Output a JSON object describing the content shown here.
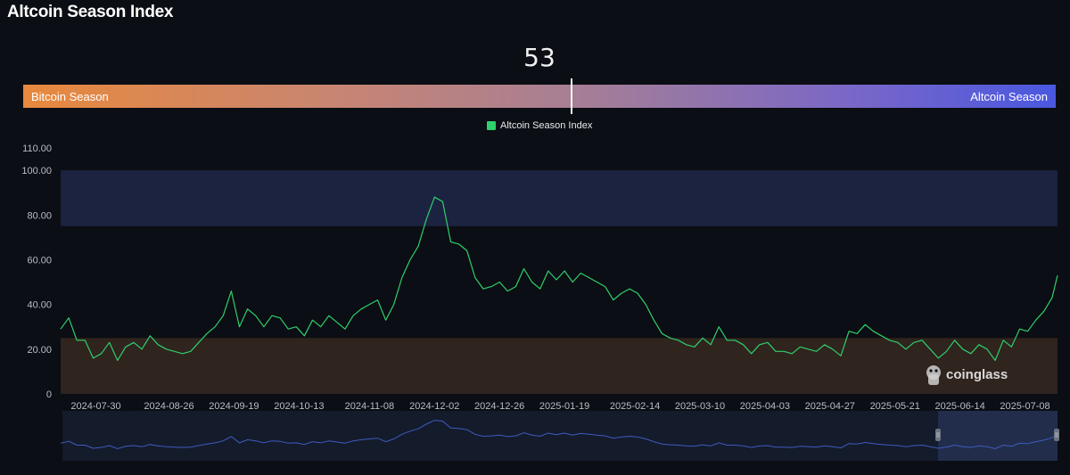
{
  "page": {
    "title": "Altcoin Season Index"
  },
  "gauge": {
    "value": "53",
    "value_num": 53,
    "left_label": "Bitcoin Season",
    "right_label": "Altcoin Season"
  },
  "legend": {
    "label": "Altcoin Season Index",
    "color": "#2fcf6b"
  },
  "watermark": {
    "text": "coinglass",
    "icon": "coinglass-logo-icon"
  },
  "colors": {
    "line": "#2fcf6b",
    "altcoin_zone": "#1b2340",
    "bitcoin_zone": "#2f241e",
    "navigator_line": "#3e5bbf",
    "navigator_selection": "#23304f",
    "background": "#0b0e14"
  },
  "chart_data": {
    "type": "line",
    "title": "Altcoin Season Index",
    "legend_placement": "top-center",
    "grid": false,
    "y_ticks": [
      "0",
      "20.00",
      "40.00",
      "60.00",
      "80.00",
      "100.00",
      "110.00"
    ],
    "y_tick_values": [
      0,
      20,
      40,
      60,
      80,
      100,
      110
    ],
    "ylim": [
      0,
      110
    ],
    "x_ticks": [
      "2024-07-30",
      "2024-08-26",
      "2024-09-19",
      "2024-10-13",
      "2024-11-08",
      "2024-12-02",
      "2024-12-26",
      "2025-01-19",
      "2025-02-14",
      "2025-03-10",
      "2025-04-03",
      "2025-04-27",
      "2025-05-21",
      "2025-06-14",
      "2025-07-08"
    ],
    "xlim": [
      "2024-07-17",
      "2025-07-20"
    ],
    "bands": [
      {
        "name": "Altcoin Season zone",
        "from": 75,
        "to": 100
      },
      {
        "name": "Bitcoin Season zone",
        "from": 0,
        "to": 25
      }
    ],
    "series": [
      {
        "name": "Altcoin Season Index",
        "x": [
          "2024-07-17",
          "2024-07-20",
          "2024-07-23",
          "2024-07-26",
          "2024-07-29",
          "2024-08-01",
          "2024-08-04",
          "2024-08-07",
          "2024-08-10",
          "2024-08-13",
          "2024-08-16",
          "2024-08-19",
          "2024-08-22",
          "2024-08-25",
          "2024-08-28",
          "2024-08-31",
          "2024-09-03",
          "2024-09-06",
          "2024-09-09",
          "2024-09-12",
          "2024-09-15",
          "2024-09-18",
          "2024-09-21",
          "2024-09-24",
          "2024-09-27",
          "2024-09-30",
          "2024-10-03",
          "2024-10-06",
          "2024-10-09",
          "2024-10-12",
          "2024-10-15",
          "2024-10-18",
          "2024-10-21",
          "2024-10-24",
          "2024-10-27",
          "2024-10-30",
          "2024-11-02",
          "2024-11-05",
          "2024-11-08",
          "2024-11-11",
          "2024-11-14",
          "2024-11-17",
          "2024-11-20",
          "2024-11-23",
          "2024-11-26",
          "2024-11-29",
          "2024-12-02",
          "2024-12-05",
          "2024-12-08",
          "2024-12-11",
          "2024-12-14",
          "2024-12-17",
          "2024-12-20",
          "2024-12-23",
          "2024-12-26",
          "2024-12-29",
          "2025-01-01",
          "2025-01-04",
          "2025-01-07",
          "2025-01-10",
          "2025-01-13",
          "2025-01-16",
          "2025-01-19",
          "2025-01-22",
          "2025-01-25",
          "2025-01-28",
          "2025-01-31",
          "2025-02-03",
          "2025-02-06",
          "2025-02-09",
          "2025-02-12",
          "2025-02-15",
          "2025-02-18",
          "2025-02-21",
          "2025-02-24",
          "2025-02-27",
          "2025-03-02",
          "2025-03-05",
          "2025-03-08",
          "2025-03-11",
          "2025-03-14",
          "2025-03-17",
          "2025-03-20",
          "2025-03-23",
          "2025-03-26",
          "2025-03-29",
          "2025-04-01",
          "2025-04-04",
          "2025-04-07",
          "2025-04-10",
          "2025-04-13",
          "2025-04-16",
          "2025-04-19",
          "2025-04-22",
          "2025-04-25",
          "2025-04-28",
          "2025-05-01",
          "2025-05-04",
          "2025-05-07",
          "2025-05-10",
          "2025-05-13",
          "2025-05-16",
          "2025-05-19",
          "2025-05-22",
          "2025-05-25",
          "2025-05-28",
          "2025-05-31",
          "2025-06-03",
          "2025-06-06",
          "2025-06-09",
          "2025-06-12",
          "2025-06-15",
          "2025-06-18",
          "2025-06-21",
          "2025-06-24",
          "2025-06-27",
          "2025-06-30",
          "2025-07-03",
          "2025-07-06",
          "2025-07-09",
          "2025-07-12",
          "2025-07-15",
          "2025-07-18",
          "2025-07-20"
        ],
        "values": [
          29,
          34,
          24,
          24,
          16,
          18,
          23,
          15,
          21,
          23,
          20,
          26,
          22,
          20,
          19,
          18,
          19,
          23,
          27,
          30,
          35,
          46,
          30,
          38,
          35,
          30,
          35,
          34,
          29,
          30,
          26,
          33,
          30,
          35,
          32,
          29,
          35,
          38,
          40,
          42,
          33,
          40,
          52,
          60,
          66,
          78,
          88,
          86,
          68,
          67,
          64,
          52,
          47,
          48,
          50,
          46,
          48,
          56,
          50,
          47,
          55,
          51,
          55,
          50,
          54,
          52,
          50,
          48,
          42,
          45,
          47,
          45,
          40,
          33,
          27,
          25,
          24,
          22,
          21,
          25,
          22,
          30,
          24,
          24,
          22,
          18,
          22,
          23,
          19,
          19,
          18,
          21,
          20,
          19,
          22,
          20,
          17,
          28,
          27,
          31,
          28,
          26,
          24,
          23,
          20,
          23,
          24,
          20,
          16,
          19,
          24,
          20,
          18,
          22,
          20,
          15,
          24,
          21,
          29,
          28,
          33,
          37,
          43,
          53
        ]
      }
    ]
  }
}
